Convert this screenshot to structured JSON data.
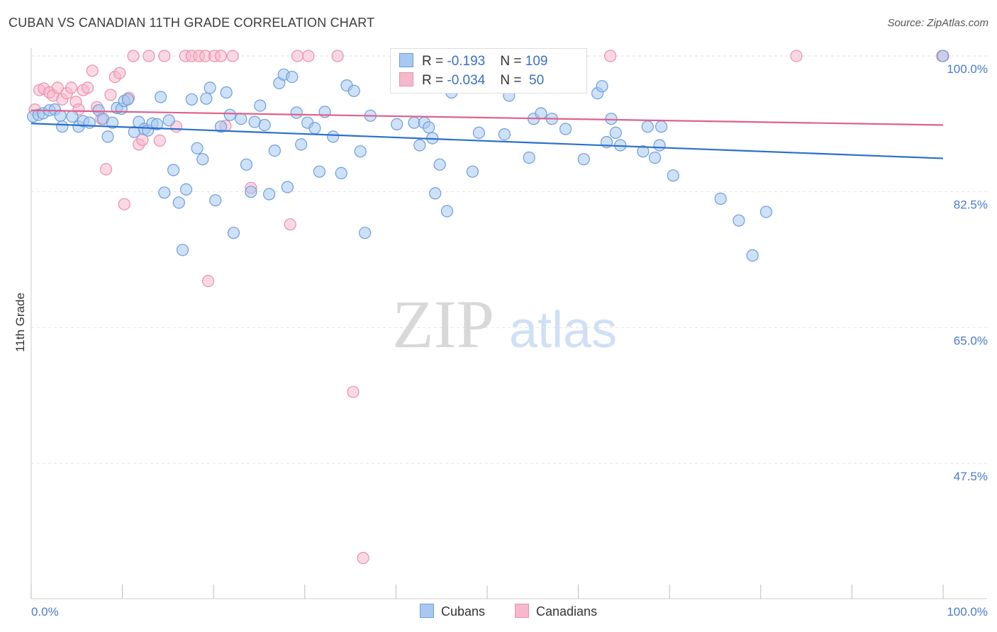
{
  "title": "CUBAN VS CANADIAN 11TH GRADE CORRELATION CHART",
  "source": "Source: ZipAtlas.com",
  "colors": {
    "blue_fill": "#a8c8f0",
    "blue_stroke": "#6a9edb",
    "blue_line": "#2a6fcc",
    "pink_fill": "#f7b8cc",
    "pink_stroke": "#e890ac",
    "pink_line": "#e0608a",
    "tick_text": "#4a7cc7",
    "grid": "#e2e2e2"
  },
  "legend": {
    "rows": [
      {
        "r_label": "R = ",
        "r_value": "-0.193",
        "n_label": "N = ",
        "n_value": "109"
      },
      {
        "r_label": "R = ",
        "r_value": "-0.034",
        "n_label": "N = ",
        "n_value": " 50"
      }
    ]
  },
  "bottom_legend": {
    "cubans": "Cubans",
    "canadians": "Canadians"
  },
  "watermark": {
    "zip": "ZIP",
    "atlas": "atlas"
  },
  "chart_data": {
    "type": "scatter",
    "ylabel": "11th Grade",
    "xlim": [
      0,
      100
    ],
    "ylim": [
      32.0,
      101.5
    ],
    "x_tick_labels": [
      "0.0%",
      "100.0%"
    ],
    "y_ticks": [
      {
        "value": 100.0,
        "label": "100.0%"
      },
      {
        "value": 82.5,
        "label": "82.5%"
      },
      {
        "value": 65.0,
        "label": "65.0%"
      },
      {
        "value": 47.5,
        "label": "47.5%"
      }
    ],
    "grid": true,
    "series": [
      {
        "name": "Cubans",
        "trend": {
          "x": [
            0,
            100
          ],
          "y": [
            91.3,
            86.8
          ]
        },
        "points": [
          [
            0.2,
            92.2
          ],
          [
            0.8,
            92.4
          ],
          [
            1.3,
            92.6
          ],
          [
            2.0,
            93.0
          ],
          [
            2.6,
            93.1
          ],
          [
            3.2,
            92.3
          ],
          [
            3.4,
            90.9
          ],
          [
            4.5,
            92.2
          ],
          [
            5.2,
            90.9
          ],
          [
            5.7,
            91.6
          ],
          [
            6.4,
            91.4
          ],
          [
            7.4,
            93.0
          ],
          [
            7.9,
            91.9
          ],
          [
            8.4,
            89.6
          ],
          [
            8.9,
            91.4
          ],
          [
            9.4,
            93.3
          ],
          [
            9.9,
            93.2
          ],
          [
            10.2,
            94.2
          ],
          [
            10.6,
            94.4
          ],
          [
            11.3,
            90.2
          ],
          [
            11.8,
            91.5
          ],
          [
            12.4,
            90.6
          ],
          [
            12.8,
            90.4
          ],
          [
            13.3,
            91.3
          ],
          [
            13.8,
            91.2
          ],
          [
            14.2,
            94.7
          ],
          [
            14.6,
            82.4
          ],
          [
            15.1,
            91.7
          ],
          [
            15.6,
            85.3
          ],
          [
            16.2,
            81.1
          ],
          [
            16.6,
            75.0
          ],
          [
            17.0,
            82.8
          ],
          [
            17.6,
            94.4
          ],
          [
            18.2,
            88.1
          ],
          [
            18.8,
            86.7
          ],
          [
            19.2,
            94.5
          ],
          [
            19.6,
            95.9
          ],
          [
            20.2,
            81.4
          ],
          [
            20.8,
            90.9
          ],
          [
            21.4,
            95.3
          ],
          [
            21.8,
            92.4
          ],
          [
            22.2,
            77.2
          ],
          [
            23.0,
            91.9
          ],
          [
            23.6,
            86.0
          ],
          [
            24.1,
            82.5
          ],
          [
            24.5,
            91.5
          ],
          [
            25.1,
            93.6
          ],
          [
            25.6,
            91.1
          ],
          [
            26.1,
            82.2
          ],
          [
            26.7,
            87.8
          ],
          [
            27.2,
            96.5
          ],
          [
            27.7,
            97.6
          ],
          [
            28.1,
            83.1
          ],
          [
            28.6,
            97.3
          ],
          [
            29.1,
            92.7
          ],
          [
            29.6,
            88.6
          ],
          [
            30.3,
            91.4
          ],
          [
            31.1,
            90.7
          ],
          [
            31.6,
            85.1
          ],
          [
            32.2,
            92.8
          ],
          [
            33.1,
            89.6
          ],
          [
            34.0,
            84.9
          ],
          [
            34.6,
            96.2
          ],
          [
            35.4,
            95.5
          ],
          [
            36.1,
            87.7
          ],
          [
            36.6,
            77.2
          ],
          [
            37.2,
            92.3
          ],
          [
            40.1,
            91.2
          ],
          [
            42.0,
            91.4
          ],
          [
            42.6,
            88.5
          ],
          [
            43.1,
            91.4
          ],
          [
            43.6,
            90.8
          ],
          [
            44.0,
            89.4
          ],
          [
            44.3,
            82.3
          ],
          [
            44.8,
            86.0
          ],
          [
            45.6,
            80.0
          ],
          [
            46.1,
            95.3
          ],
          [
            48.4,
            85.1
          ],
          [
            49.1,
            90.1
          ],
          [
            51.9,
            89.9
          ],
          [
            52.4,
            94.9
          ],
          [
            54.6,
            86.9
          ],
          [
            55.1,
            91.9
          ],
          [
            55.9,
            92.6
          ],
          [
            57.1,
            91.9
          ],
          [
            58.6,
            90.6
          ],
          [
            60.6,
            86.7
          ],
          [
            62.1,
            95.2
          ],
          [
            62.6,
            96.1
          ],
          [
            63.1,
            88.9
          ],
          [
            63.6,
            91.9
          ],
          [
            64.1,
            90.1
          ],
          [
            64.6,
            88.5
          ],
          [
            67.1,
            87.7
          ],
          [
            67.6,
            90.9
          ],
          [
            68.4,
            86.9
          ],
          [
            68.9,
            88.5
          ],
          [
            69.1,
            90.9
          ],
          [
            70.4,
            84.6
          ],
          [
            75.6,
            81.6
          ],
          [
            77.6,
            78.8
          ],
          [
            79.1,
            74.3
          ],
          [
            80.6,
            79.9
          ],
          [
            100.0,
            100.0
          ]
        ]
      },
      {
        "name": "Canadians",
        "trend": {
          "x": [
            0,
            100
          ],
          "y": [
            93.0,
            91.1
          ]
        },
        "points": [
          [
            0.4,
            93.1
          ],
          [
            0.9,
            95.6
          ],
          [
            1.4,
            95.8
          ],
          [
            2.0,
            95.3
          ],
          [
            2.4,
            94.9
          ],
          [
            2.9,
            95.9
          ],
          [
            3.4,
            94.4
          ],
          [
            3.9,
            95.2
          ],
          [
            4.4,
            95.9
          ],
          [
            4.9,
            94.1
          ],
          [
            5.2,
            93.1
          ],
          [
            5.7,
            95.6
          ],
          [
            6.2,
            95.9
          ],
          [
            6.7,
            98.1
          ],
          [
            7.2,
            93.4
          ],
          [
            7.7,
            91.9
          ],
          [
            8.2,
            85.4
          ],
          [
            8.7,
            95.0
          ],
          [
            9.2,
            97.3
          ],
          [
            9.7,
            97.8
          ],
          [
            10.2,
            80.9
          ],
          [
            10.7,
            94.6
          ],
          [
            11.2,
            100.0
          ],
          [
            11.8,
            88.6
          ],
          [
            12.2,
            89.2
          ],
          [
            12.9,
            100.0
          ],
          [
            14.1,
            89.1
          ],
          [
            14.6,
            100.0
          ],
          [
            15.9,
            90.9
          ],
          [
            16.9,
            100.0
          ],
          [
            17.6,
            100.0
          ],
          [
            18.4,
            100.0
          ],
          [
            19.1,
            100.0
          ],
          [
            19.4,
            71.0
          ],
          [
            20.1,
            100.0
          ],
          [
            20.8,
            100.0
          ],
          [
            21.3,
            91.0
          ],
          [
            22.1,
            100.0
          ],
          [
            24.1,
            83.0
          ],
          [
            28.4,
            78.3
          ],
          [
            29.2,
            100.0
          ],
          [
            30.4,
            100.0
          ],
          [
            33.6,
            100.0
          ],
          [
            35.3,
            56.7
          ],
          [
            36.4,
            35.3
          ],
          [
            47.6,
            100.0
          ],
          [
            57.6,
            100.0
          ],
          [
            63.5,
            100.0
          ],
          [
            83.9,
            100.0
          ],
          [
            99.9,
            100.0
          ]
        ]
      }
    ]
  }
}
